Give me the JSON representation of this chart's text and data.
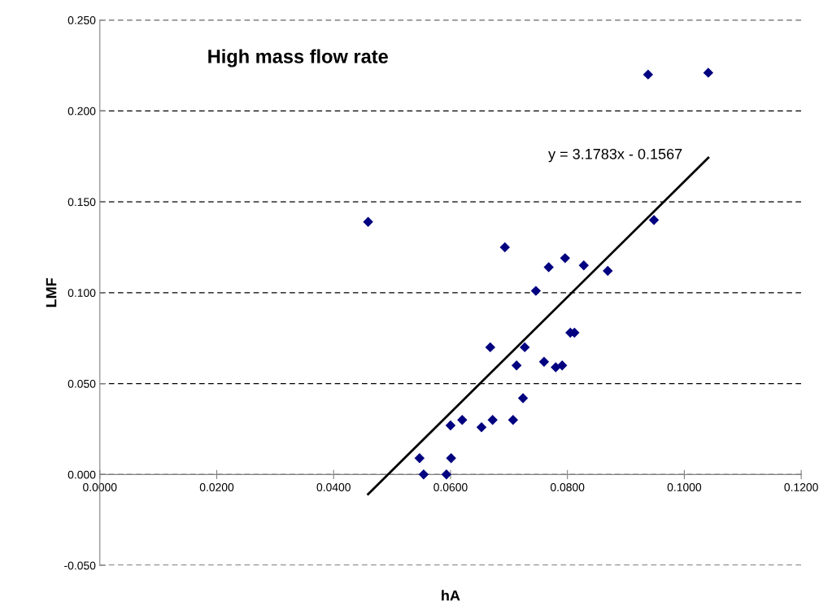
{
  "chart_data": {
    "type": "scatter",
    "title": "High mass flow rate",
    "xlabel": "hA",
    "ylabel": "LMF",
    "annotations": [
      "y = 3.1783x - 0.1567"
    ],
    "series": [
      {
        "color": "#000080",
        "marker": "diamond",
        "x": [
          0.0459,
          0.0547,
          0.0554,
          0.0593,
          0.06,
          0.0601,
          0.062,
          0.0653,
          0.0668,
          0.0672,
          0.0693,
          0.0707,
          0.0713,
          0.0724,
          0.0727,
          0.0746,
          0.076,
          0.0768,
          0.078,
          0.0791,
          0.0796,
          0.0805,
          0.0812,
          0.0828,
          0.0869,
          0.0938,
          0.0948,
          0.1041
        ],
        "values": [
          0.139,
          0.009,
          0.0,
          0.0,
          0.027,
          0.009,
          0.03,
          0.026,
          0.07,
          0.03,
          0.125,
          0.03,
          0.06,
          0.042,
          0.07,
          0.101,
          0.062,
          0.114,
          0.059,
          0.06,
          0.119,
          0.078,
          0.078,
          0.115,
          0.112,
          0.22,
          0.14,
          0.221
        ]
      },
      {
        "type": "line",
        "color": "#000000",
        "marker": "none",
        "line_style": "solid",
        "x": [
          0.0459,
          0.1041
        ],
        "values": [
          -0.0108,
          0.1742
        ]
      }
    ],
    "xlim": [
      0,
      0.12
    ],
    "ylim": [
      -0.05,
      0.25
    ],
    "xticks": [
      {
        "value": 0,
        "label": "0.0000"
      },
      {
        "value": 0.02,
        "label": "0.0200"
      },
      {
        "value": 0.04,
        "label": "0.0400"
      },
      {
        "value": 0.06,
        "label": "0.0600"
      },
      {
        "value": 0.08,
        "label": "0.0800"
      },
      {
        "value": 0.1,
        "label": "0.1000"
      },
      {
        "value": 0.12,
        "label": "0.1200"
      }
    ],
    "yticks": [
      {
        "value": -0.05,
        "label": "-0.050"
      },
      {
        "value": 0,
        "label": "0.000"
      },
      {
        "value": 0.05,
        "label": "0.050"
      },
      {
        "value": 0.1,
        "label": "0.100"
      },
      {
        "value": 0.15,
        "label": "0.150"
      },
      {
        "value": 0.2,
        "label": "0.200"
      },
      {
        "value": 0.25,
        "label": "0.250"
      }
    ],
    "grid": "y",
    "legend": false
  }
}
